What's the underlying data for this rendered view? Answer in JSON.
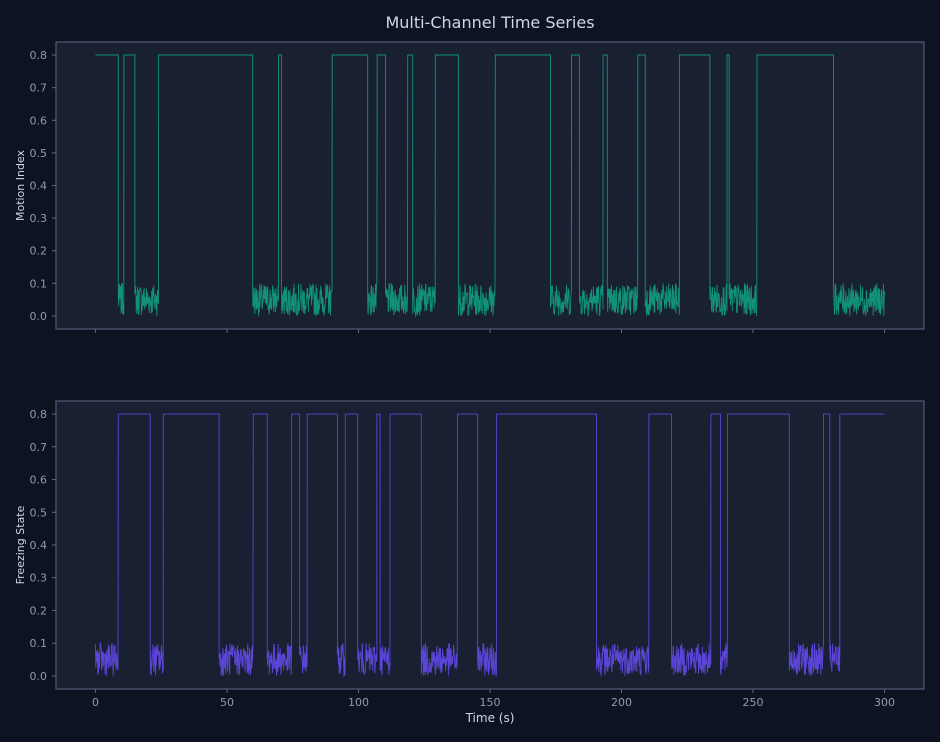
{
  "chart_data": {
    "title": "Multi-Channel Time Series",
    "xlabel": "Time (s)",
    "xlim": [
      -15,
      315
    ],
    "xticks": [
      0,
      50,
      100,
      150,
      200,
      250,
      300
    ],
    "background": "#0e1321",
    "panel_color": "#182032",
    "axis_color": "#5c6a85",
    "text_color": "#cfd6e4",
    "tick_color": "#8f9ab0",
    "panels": [
      {
        "type": "line",
        "ylabel": "Motion Index",
        "ylim": [
          -0.04,
          0.84
        ],
        "yticks": [
          "0.0",
          "0.1",
          "0.2",
          "0.3",
          "0.4",
          "0.5",
          "0.6",
          "0.7",
          "0.8"
        ],
        "color": "#12917a",
        "high_value": 0.8,
        "noise_range": [
          0.0,
          0.1
        ],
        "low_segments": [
          [
            8.7,
            10.8
          ],
          [
            15,
            24
          ],
          [
            59.8,
            69.6
          ],
          [
            70.7,
            90
          ],
          [
            103.5,
            107.1
          ],
          [
            110.3,
            118.7
          ],
          [
            120.6,
            129.2
          ],
          [
            138,
            152
          ],
          [
            173,
            181
          ],
          [
            184,
            193
          ],
          [
            194.6,
            206.2
          ],
          [
            209,
            222
          ],
          [
            233.6,
            240.1
          ],
          [
            240.9,
            251.5
          ],
          [
            280.6,
            300
          ]
        ]
      },
      {
        "type": "line",
        "ylabel": "Freezing State",
        "ylim": [
          -0.04,
          0.84
        ],
        "yticks": [
          "0.0",
          "0.1",
          "0.2",
          "0.3",
          "0.4",
          "0.5",
          "0.6",
          "0.7",
          "0.8"
        ],
        "color": "#5b45d6",
        "high_value": 0.8,
        "noise_range": [
          0.0,
          0.1
        ],
        "low_segments": [
          [
            0,
            8.7
          ],
          [
            20.8,
            25.8
          ],
          [
            47,
            60
          ],
          [
            65.3,
            74.6
          ],
          [
            77.6,
            80.5
          ],
          [
            92,
            95
          ],
          [
            99.7,
            107
          ],
          [
            108.2,
            112
          ],
          [
            123.9,
            137.6
          ],
          [
            145.3,
            152.5
          ],
          [
            190.5,
            210.4
          ],
          [
            219,
            234
          ],
          [
            237.6,
            240.3
          ],
          [
            263.8,
            276.8
          ],
          [
            279.2,
            283
          ]
        ]
      }
    ]
  }
}
